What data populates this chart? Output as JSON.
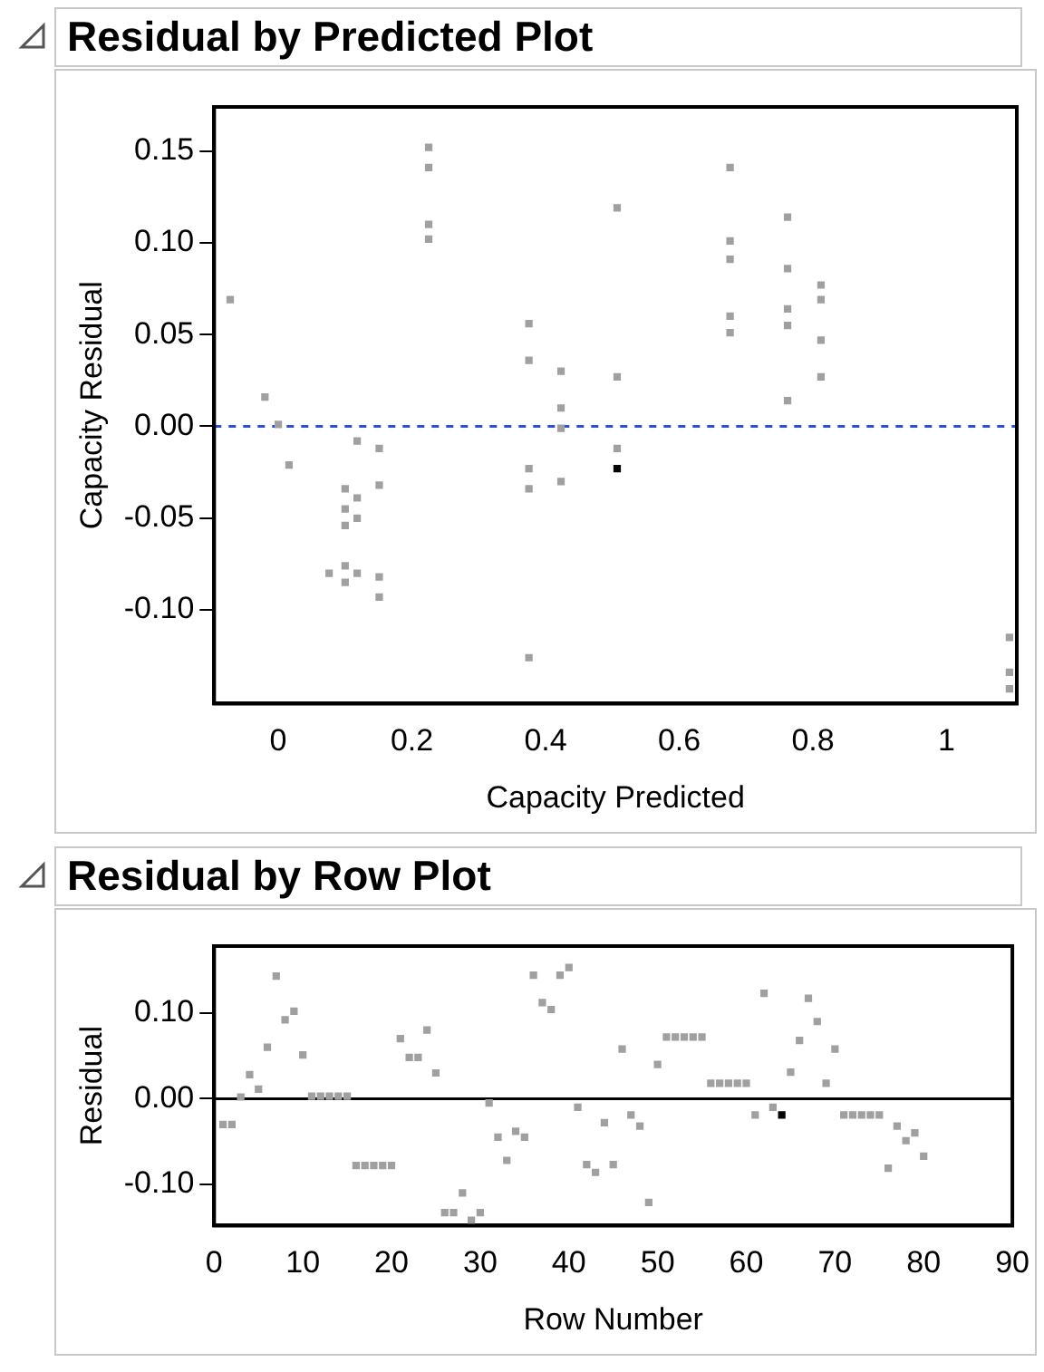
{
  "chart_data": [
    {
      "type": "scatter",
      "title": "Residual by Predicted Plot",
      "xlabel": "Capacity Predicted",
      "ylabel": "Capacity Residual",
      "xlim": [
        -0.096,
        1.105
      ],
      "xticks": [
        0,
        0.2,
        0.4,
        0.6,
        0.8,
        1
      ],
      "ylim": [
        -0.151,
        0.174
      ],
      "yticks": [
        {
          "value": -0.1,
          "label": "-0.10"
        },
        {
          "value": -0.05,
          "label": "-0.05"
        },
        {
          "value": 0,
          "label": "0.00"
        },
        {
          "value": 0.05,
          "label": "0.05"
        },
        {
          "value": 0.1,
          "label": "0.10"
        },
        {
          "value": 0.15,
          "label": "0.15"
        }
      ],
      "grid": false,
      "legend": false,
      "marker": "square",
      "ref_lines": [
        {
          "axis": "y",
          "value": 0,
          "color": "#2b4fd8",
          "line_style": "dashed"
        }
      ],
      "series": [
        {
          "color": "#a0a0a0",
          "x": [
            -0.072,
            -0.02,
            0.0,
            0.016,
            0.118,
            0.151,
            0.151,
            0.1,
            0.118,
            0.1,
            0.118,
            0.1,
            0.076,
            0.1,
            0.118,
            0.1,
            0.151,
            0.151,
            0.225,
            0.225,
            0.225,
            0.225,
            0.375,
            0.375,
            0.375,
            0.375,
            0.375,
            0.423,
            0.423,
            0.423,
            0.423,
            0.507,
            0.507,
            0.507,
            0.676,
            0.676,
            0.676,
            0.676,
            0.676,
            0.762,
            0.762,
            0.762,
            0.762,
            0.762,
            0.812,
            0.812,
            0.812,
            0.812,
            1.094,
            1.094,
            1.094
          ],
          "values": [
            0.069,
            0.016,
            0.001,
            -0.021,
            -0.008,
            -0.012,
            -0.032,
            -0.034,
            -0.039,
            -0.045,
            -0.05,
            -0.054,
            -0.08,
            -0.076,
            -0.08,
            -0.085,
            -0.082,
            -0.093,
            0.152,
            0.141,
            0.11,
            0.102,
            0.056,
            0.036,
            -0.023,
            -0.034,
            -0.126,
            0.03,
            0.01,
            -0.001,
            -0.03,
            0.119,
            0.027,
            -0.012,
            0.141,
            0.101,
            0.091,
            0.06,
            0.051,
            0.114,
            0.086,
            0.064,
            0.055,
            0.014,
            0.077,
            0.069,
            0.047,
            0.027,
            -0.115,
            -0.134,
            -0.143
          ]
        },
        {
          "color": "#000000",
          "x": [
            0.507
          ],
          "values": [
            -0.023
          ]
        }
      ]
    },
    {
      "type": "scatter",
      "title": "Residual by Row Plot",
      "xlabel": "Row Number",
      "ylabel": "Residual",
      "xlim": [
        0,
        90
      ],
      "xticks": [
        0,
        10,
        20,
        30,
        40,
        50,
        60,
        70,
        80,
        90
      ],
      "ylim": [
        -0.148,
        0.178
      ],
      "yticks": [
        {
          "value": -0.1,
          "label": "-0.10"
        },
        {
          "value": 0,
          "label": "0.00"
        },
        {
          "value": 0.1,
          "label": "0.10"
        }
      ],
      "grid": false,
      "legend": false,
      "marker": "square",
      "ref_lines": [
        {
          "axis": "y",
          "value": 0,
          "color": "#000000",
          "line_style": "solid"
        }
      ],
      "series": [
        {
          "color": "#a0a0a0",
          "x": [
            1,
            2,
            3,
            4,
            5,
            6,
            7,
            8,
            9,
            10,
            11,
            12,
            13,
            14,
            15,
            16,
            17,
            18,
            19,
            20,
            21,
            22,
            23,
            24,
            25,
            26,
            27,
            28,
            29,
            30,
            31,
            32,
            33,
            34,
            35,
            36,
            37,
            38,
            39,
            40,
            41,
            42,
            43,
            44,
            45,
            46,
            47,
            48,
            49,
            50,
            51,
            52,
            53,
            54,
            55,
            56,
            57,
            58,
            59,
            60,
            61,
            62,
            63,
            65,
            66,
            67,
            68,
            69,
            70,
            71,
            72,
            73,
            74,
            75,
            76,
            77,
            78,
            79,
            80
          ],
          "values": [
            -0.03,
            -0.03,
            0.002,
            0.028,
            0.011,
            0.06,
            0.143,
            0.092,
            0.102,
            0.051,
            0.003,
            0.003,
            0.003,
            0.003,
            0.003,
            -0.078,
            -0.078,
            -0.078,
            -0.078,
            -0.078,
            0.07,
            0.048,
            0.048,
            0.08,
            0.03,
            -0.133,
            -0.133,
            -0.11,
            -0.142,
            -0.133,
            -0.005,
            -0.045,
            -0.072,
            -0.038,
            -0.045,
            0.144,
            0.112,
            0.104,
            0.144,
            0.153,
            -0.01,
            -0.077,
            -0.086,
            -0.028,
            -0.077,
            0.058,
            -0.019,
            -0.032,
            -0.121,
            0.04,
            0.072,
            0.072,
            0.072,
            0.072,
            0.072,
            0.018,
            0.018,
            0.018,
            0.018,
            0.018,
            -0.019,
            0.123,
            -0.01,
            0.031,
            0.068,
            0.117,
            0.09,
            0.018,
            0.058,
            -0.019,
            -0.019,
            -0.019,
            -0.019,
            -0.019,
            -0.081,
            -0.032,
            -0.049,
            -0.04,
            -0.067
          ]
        },
        {
          "color": "#000000",
          "x": [
            64
          ],
          "values": [
            -0.019
          ]
        }
      ]
    }
  ]
}
